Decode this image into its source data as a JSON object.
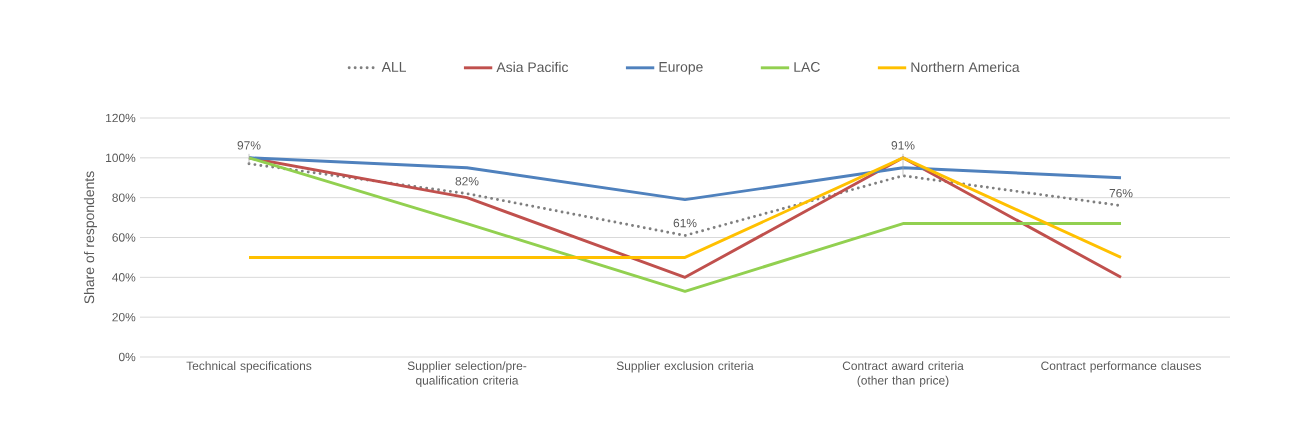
{
  "chart_data": {
    "type": "line",
    "ylabel": "Share of respondents",
    "categories": [
      "Technical specifications",
      "Supplier selection/pre-qualification criteria",
      "Supplier exclusion criteria",
      "Contract award criteria (other than price)",
      "Contract performance clauses"
    ],
    "series": [
      {
        "name": "ALL",
        "color": "#7f7f7f",
        "line_style": "dotted",
        "values": [
          97,
          82,
          61,
          91,
          76
        ],
        "value_labels": [
          "97%",
          "82%",
          "61%",
          "91%",
          "76%"
        ]
      },
      {
        "name": "Asia Pacific",
        "color": "#c0504d",
        "values": [
          100,
          80,
          40,
          100,
          40
        ]
      },
      {
        "name": "Europe",
        "color": "#4f81bd",
        "values": [
          100,
          95,
          79,
          95,
          90
        ]
      },
      {
        "name": "LAC",
        "color": "#92d050",
        "values": [
          100,
          67,
          33,
          67,
          67
        ]
      },
      {
        "name": "Northern America",
        "color": "#ffc000",
        "values": [
          50,
          50,
          50,
          100,
          50
        ]
      }
    ],
    "ylim": [
      0,
      120
    ],
    "yticks": [
      {
        "value": 0,
        "label": "0%"
      },
      {
        "value": 20,
        "label": "20%"
      },
      {
        "value": 40,
        "label": "40%"
      },
      {
        "value": 60,
        "label": "60%"
      },
      {
        "value": 80,
        "label": "80%"
      },
      {
        "value": 100,
        "label": "100%"
      },
      {
        "value": 120,
        "label": "120%"
      }
    ],
    "grid": "y",
    "legend": "top"
  }
}
